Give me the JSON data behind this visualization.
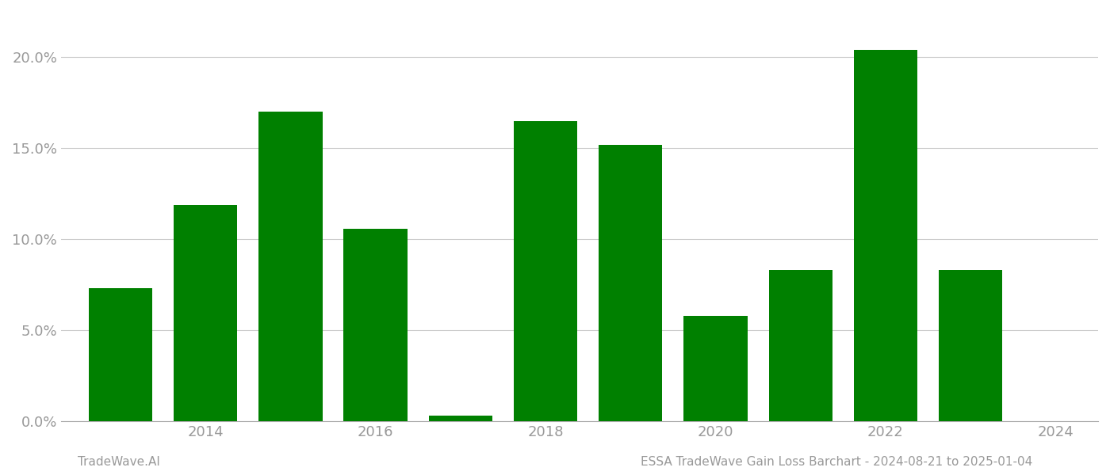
{
  "years": [
    2013,
    2014,
    2015,
    2016,
    2017,
    2018,
    2019,
    2020,
    2021,
    2022,
    2023
  ],
  "values": [
    0.073,
    0.119,
    0.17,
    0.106,
    0.003,
    0.165,
    0.152,
    0.058,
    0.083,
    0.204,
    0.083
  ],
  "bar_color": "#008000",
  "background_color": "#ffffff",
  "ylim": [
    0,
    0.225
  ],
  "yticks": [
    0.0,
    0.05,
    0.1,
    0.15,
    0.2
  ],
  "xtick_labels": [
    "2014",
    "2016",
    "2018",
    "2020",
    "2022",
    "2024"
  ],
  "xtick_positions": [
    2014.0,
    2016.0,
    2018.0,
    2020.0,
    2022.0,
    2024.0
  ],
  "xlim": [
    2012.3,
    2024.5
  ],
  "grid_color": "#cccccc",
  "footer_left": "TradeWave.AI",
  "footer_right": "ESSA TradeWave Gain Loss Barchart - 2024-08-21 to 2025-01-04",
  "footer_fontsize": 11,
  "tick_label_color": "#999999",
  "tick_label_fontsize": 13,
  "bar_width": 0.75
}
